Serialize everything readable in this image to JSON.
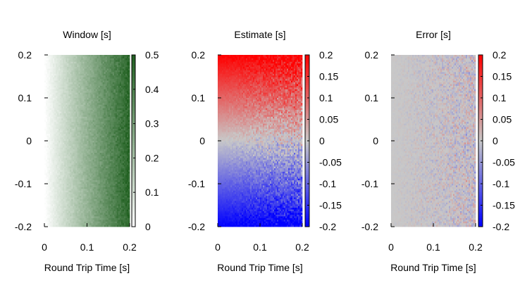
{
  "chart_data": [
    {
      "type": "heatmap",
      "title": "Window [s]",
      "xlabel": "Round Trip Time [s]",
      "ylabel": "",
      "xlim": [
        0,
        0.2
      ],
      "ylim": [
        -0.2,
        0.2
      ],
      "x_ticks": [
        "0",
        "0.1",
        "0.2"
      ],
      "y_ticks": [
        "0.2",
        "0.1",
        "0",
        "-0.1",
        "-0.2"
      ],
      "colorbar": {
        "range": [
          0,
          0.5
        ],
        "ticks": [
          "0.5",
          "0.4",
          "0.3",
          "0.2",
          "0.1",
          "0"
        ],
        "colors": [
          "#ffffff",
          "#1f5f1f"
        ]
      },
      "pattern": "value increases with round trip time, independent of y"
    },
    {
      "type": "heatmap",
      "title": "Estimate [s]",
      "xlabel": "Round Trip Time [s]",
      "ylabel": "",
      "xlim": [
        0,
        0.2
      ],
      "ylim": [
        -0.2,
        0.2
      ],
      "x_ticks": [
        "0",
        "0.1",
        "0.2"
      ],
      "y_ticks": [
        "0.2",
        "0.1",
        "0",
        "-0.1",
        "-0.2"
      ],
      "colorbar": {
        "range": [
          -0.2,
          0.2
        ],
        "ticks": [
          "0.2",
          "0.15",
          "0.1",
          "0.05",
          "0",
          "-0.05",
          "-0.1",
          "-0.15",
          "-0.2"
        ],
        "colors": [
          "#0000ff",
          "#c8c8c8",
          "#ff0000"
        ]
      },
      "pattern": "value follows y, noise increases with round trip time"
    },
    {
      "type": "heatmap",
      "title": "Error [s]",
      "xlabel": "Round Trip Time [s]",
      "ylabel": "",
      "xlim": [
        0,
        0.2
      ],
      "ylim": [
        -0.2,
        0.2
      ],
      "x_ticks": [
        "0",
        "0.1",
        "0.2"
      ],
      "y_ticks": [
        "0.2",
        "0.1",
        "0",
        "-0.1",
        "-0.2"
      ],
      "colorbar": {
        "range": [
          -0.2,
          0.2
        ],
        "ticks": [
          "0.2",
          "0.15",
          "0.1",
          "0.05",
          "0",
          "-0.05",
          "-0.1",
          "-0.15",
          "-0.2"
        ],
        "colors": [
          "#0000ff",
          "#c8c8c8",
          "#ff0000"
        ]
      },
      "pattern": "near zero everywhere, noise increases with round trip time"
    }
  ]
}
